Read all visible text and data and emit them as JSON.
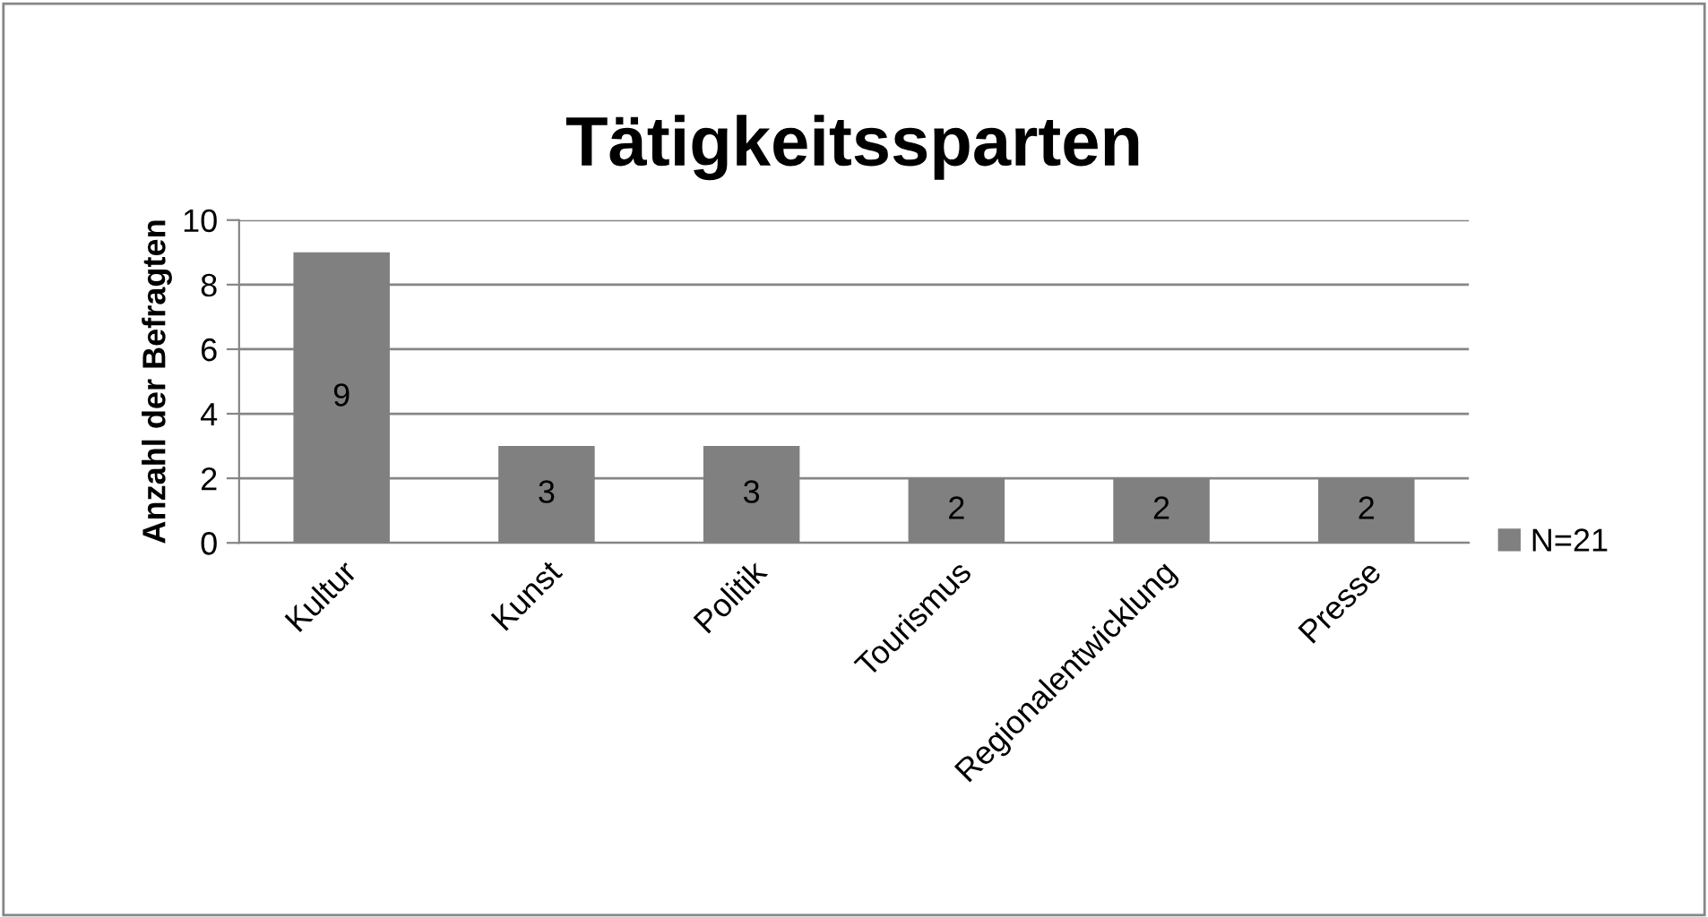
{
  "chart_data": {
    "type": "bar",
    "title": "Tätigkeitssparten",
    "ylabel": "Anzahl der Befragten",
    "categories": [
      "Kultur",
      "Kunst",
      "Politik",
      "Tourismus",
      "Regionalentwicklung",
      "Presse"
    ],
    "series": [
      {
        "name": "N=21",
        "color": "#808080",
        "values": [
          9,
          3,
          3,
          2,
          2,
          2
        ]
      }
    ],
    "ylim": [
      0,
      10
    ],
    "yticks": [
      0,
      2,
      4,
      6,
      8,
      10
    ],
    "grid": "y",
    "legend": "right",
    "data_labels": true
  }
}
